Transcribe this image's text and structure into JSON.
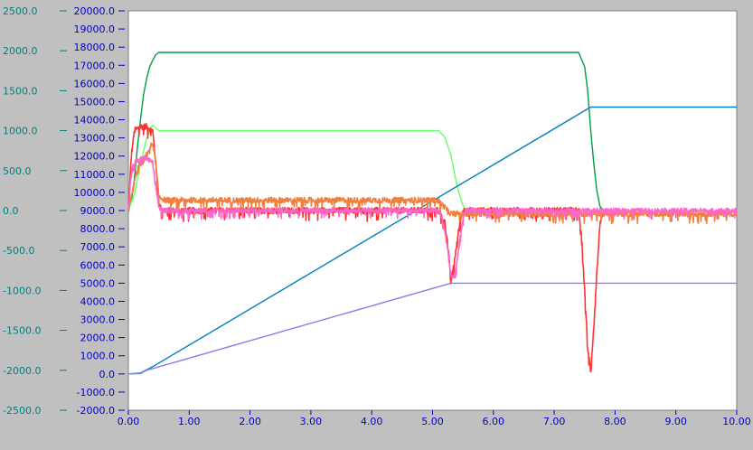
{
  "chart_data": {
    "type": "line",
    "title": "",
    "xlabel": "",
    "grid": false,
    "background": "#ffffff",
    "frame_color": "#c0c0c0",
    "x_axis": {
      "range": [
        0,
        10
      ],
      "tick_values": [
        0,
        1,
        2,
        3,
        4,
        5,
        6,
        7,
        8,
        9,
        10
      ],
      "tick_labels": [
        "0.00",
        "1.00",
        "2.00",
        "3.00",
        "4.00",
        "5.00",
        "6.00",
        "7.00",
        "8.00",
        "9.00",
        "10.00"
      ],
      "color": "#0000cc"
    },
    "y_axes": [
      {
        "id": "y-left",
        "range": [
          -2500,
          2500
        ],
        "tick_values": [
          2500,
          2000,
          1500,
          1000,
          500,
          0,
          -500,
          -1000,
          -1500,
          -2000,
          -2500
        ],
        "tick_labels": [
          "2500.0",
          "2000.0",
          "1500.0",
          "1000.0",
          "500.0",
          "0.0",
          "-500.0",
          "-1000.0",
          "-1500.0",
          "-2000.0",
          "-2500.0"
        ],
        "color": "#008080"
      },
      {
        "id": "y-right",
        "range": [
          -2000,
          20000
        ],
        "tick_values": [
          20000,
          19000,
          18000,
          17000,
          16000,
          15000,
          14000,
          13000,
          12000,
          11000,
          10000,
          9000,
          8000,
          7000,
          6000,
          5000,
          4000,
          3000,
          2000,
          1000,
          0,
          -1000,
          -2000
        ],
        "tick_labels": [
          "20000.0",
          "19000.0",
          "18000.0",
          "17000.0",
          "16000.0",
          "15000.0",
          "14000.0",
          "13000.0",
          "12000.0",
          "11000.0",
          "10000.0",
          "9000.0",
          "8000.0",
          "7000.0",
          "6000.0",
          "5000.0",
          "4000.0",
          "3000.0",
          "2000.0",
          "1000.0",
          "0.0",
          "-1000.0",
          "-2000.0"
        ],
        "color": "#0000cc"
      }
    ],
    "series": [
      {
        "color": "#00a040",
        "axis": "y-left",
        "noise": 0,
        "x": [
          0,
          0.05,
          0.1,
          0.15,
          0.2,
          0.25,
          0.3,
          0.35,
          0.4,
          0.45,
          0.5,
          7.4,
          7.5,
          7.55,
          7.6,
          7.65,
          7.7,
          7.75,
          7.8
        ],
        "y": [
          0,
          120,
          400,
          800,
          1150,
          1450,
          1650,
          1800,
          1880,
          1950,
          1980,
          1980,
          1800,
          1500,
          1000,
          600,
          250,
          60,
          0
        ]
      },
      {
        "color": "#66ff66",
        "axis": "y-left",
        "noise": 0,
        "x": [
          0,
          0.1,
          0.2,
          0.3,
          0.4,
          0.5,
          5.1,
          5.2,
          5.3,
          5.35,
          5.4,
          5.45,
          5.5,
          5.55
        ],
        "y": [
          0,
          200,
          600,
          900,
          1070,
          1000,
          1000,
          920,
          700,
          500,
          320,
          180,
          60,
          0
        ]
      },
      {
        "color": "#0080c0",
        "axis": "y-right",
        "noise": 0,
        "x": [
          0,
          0.2,
          0.4,
          7.6,
          7.8,
          10
        ],
        "y": [
          0,
          50,
          400,
          14700,
          14700,
          14700
        ]
      },
      {
        "color": "#8a7cf0",
        "axis": "y-right",
        "noise": 0,
        "x": [
          0,
          0.2,
          0.3,
          5.3,
          5.5,
          10
        ],
        "y": [
          0,
          20,
          200,
          5000,
          5000,
          5000
        ]
      },
      {
        "color": "#ff3333",
        "axis": "y-left",
        "noise": 40,
        "x": [
          0,
          0.05,
          0.1,
          0.2,
          0.3,
          0.4,
          0.45,
          0.5,
          0.55,
          4.8,
          5.1,
          5.2,
          5.25,
          5.3,
          5.35,
          5.4,
          5.45,
          5.5,
          5.6,
          7.4,
          7.45,
          7.5,
          7.55,
          7.6,
          7.65,
          7.7,
          7.75,
          7.8
        ],
        "y": [
          0,
          700,
          1000,
          1050,
          1050,
          1000,
          600,
          80,
          0,
          0,
          0,
          -150,
          -400,
          -900,
          -700,
          -400,
          -150,
          0,
          0,
          0,
          -300,
          -1000,
          -1700,
          -2050,
          -1500,
          -800,
          -200,
          0
        ]
      },
      {
        "color": "#f08040",
        "axis": "y-left",
        "noise": 35,
        "x": [
          0,
          0.1,
          0.15,
          0.2,
          0.3,
          0.4,
          0.45,
          0.5,
          0.6,
          5.0,
          5.1,
          5.3,
          10
        ],
        "y": [
          0,
          350,
          520,
          600,
          700,
          850,
          600,
          180,
          130,
          130,
          120,
          -40,
          -40
        ]
      },
      {
        "color": "#ff66cc",
        "axis": "y-left",
        "noise": 30,
        "x": [
          0,
          0.05,
          0.1,
          0.2,
          0.3,
          0.4,
          0.45,
          0.5,
          0.55,
          5.1,
          5.15,
          5.2,
          5.25,
          5.3,
          5.35,
          5.4,
          5.45,
          5.5,
          5.55,
          5.6,
          10
        ],
        "y": [
          0,
          500,
          600,
          650,
          650,
          600,
          300,
          50,
          0,
          0,
          -80,
          -250,
          -500,
          -800,
          -850,
          -650,
          -350,
          -100,
          0,
          0,
          0
        ]
      }
    ]
  }
}
